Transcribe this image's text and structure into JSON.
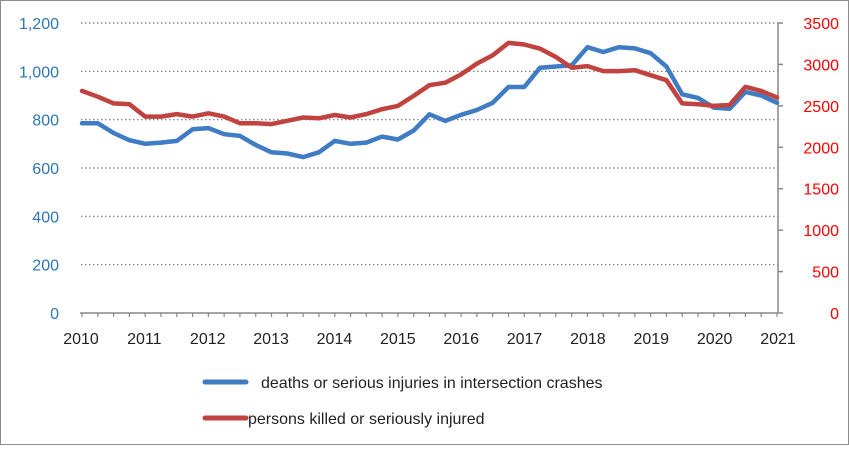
{
  "chart_data": {
    "type": "line",
    "title": "",
    "xlabel": "",
    "x_ticks": [
      "2010",
      "2011",
      "2012",
      "2013",
      "2014",
      "2015",
      "2016",
      "2017",
      "2018",
      "2019",
      "2020",
      "2021"
    ],
    "xlim": [
      2010,
      2021
    ],
    "grid": "horizontal-dotted",
    "legend_position": "bottom",
    "left_axis": {
      "ylim": [
        0,
        1200
      ],
      "ticks": [
        "0",
        "200",
        "400",
        "600",
        "800",
        "1,000",
        "1,200"
      ],
      "color": "#2E75B6"
    },
    "right_axis": {
      "ylim": [
        0,
        3500
      ],
      "ticks": [
        "0",
        "500",
        "1000",
        "1500",
        "2000",
        "2500",
        "3000",
        "3500"
      ],
      "color": "#FF0000"
    },
    "x": "quarterly from 2010.0 to 2021.0",
    "series": [
      {
        "name": "deaths or serious injuries in intersection crashes",
        "axis": "left",
        "color": "#3F7CC4",
        "values": [
          785,
          785,
          745,
          715,
          700,
          705,
          712,
          760,
          765,
          740,
          733,
          695,
          665,
          660,
          645,
          665,
          712,
          700,
          705,
          730,
          718,
          755,
          822,
          795,
          820,
          840,
          870,
          935,
          935,
          1015,
          1020,
          1025,
          1100,
          1080,
          1100,
          1095,
          1075,
          1020,
          905,
          890,
          850,
          845,
          915,
          900,
          870
        ]
      },
      {
        "name": "persons killed or seriously injured",
        "axis": "right",
        "color": "#C0433F",
        "values": [
          2680,
          2610,
          2530,
          2520,
          2370,
          2370,
          2400,
          2370,
          2410,
          2370,
          2290,
          2290,
          2280,
          2320,
          2360,
          2350,
          2390,
          2360,
          2400,
          2460,
          2500,
          2620,
          2750,
          2780,
          2880,
          3010,
          3110,
          3260,
          3240,
          3190,
          3090,
          2960,
          2980,
          2920,
          2920,
          2930,
          2870,
          2810,
          2530,
          2520,
          2500,
          2510,
          2730,
          2680,
          2600
        ]
      }
    ]
  }
}
